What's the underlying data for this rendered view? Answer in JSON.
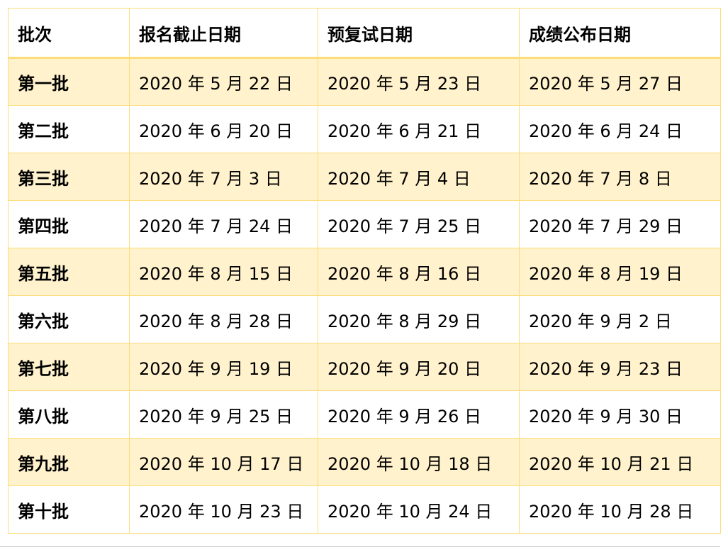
{
  "colors": {
    "border": "#fbdd7a",
    "shade": "#fff2cc"
  },
  "table": {
    "headers": [
      "批次",
      "报名截止日期",
      "预复试日期",
      "成绩公布日期"
    ],
    "rows": [
      [
        "第一批",
        "2020 年 5 月 22 日",
        "2020 年 5 月 23 日",
        "2020 年 5 月 27 日"
      ],
      [
        "第二批",
        "2020 年 6 月 20 日",
        "2020 年 6 月 21 日",
        "2020 年 6 月 24 日"
      ],
      [
        "第三批",
        "2020 年 7 月 3 日",
        "2020 年 7 月 4 日",
        "2020 年 7 月 8 日"
      ],
      [
        "第四批",
        "2020 年 7 月 24 日",
        "2020 年 7 月 25 日",
        "2020 年 7 月 29 日"
      ],
      [
        "第五批",
        "2020 年 8 月 15 日",
        "2020 年 8 月 16 日",
        "2020 年 8 月 19 日"
      ],
      [
        "第六批",
        "2020 年 8 月 28 日",
        "2020 年 8 月 29 日",
        "2020 年 9 月 2 日"
      ],
      [
        "第七批",
        "2020 年 9 月 19 日",
        "2020 年 9 月 20 日",
        "2020 年 9 月 23 日"
      ],
      [
        "第八批",
        "2020 年 9 月 25 日",
        "2020 年 9 月 26 日",
        "2020 年 9 月 30 日"
      ],
      [
        "第九批",
        "2020 年 10 月 17 日",
        "2020 年 10 月 18 日",
        "2020 年 10 月 21 日"
      ],
      [
        "第十批",
        "2020 年 10 月 23 日",
        "2020 年 10 月 24 日",
        "2020 年 10 月 28 日"
      ]
    ]
  }
}
